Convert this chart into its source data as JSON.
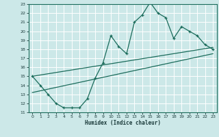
{
  "xlabel": "Humidex (Indice chaleur)",
  "bg_color": "#cce8e8",
  "grid_color": "#aacccc",
  "line_color": "#1a6b5a",
  "xlim": [
    -0.5,
    23.5
  ],
  "ylim": [
    11,
    23
  ],
  "xticks": [
    0,
    1,
    2,
    3,
    4,
    5,
    6,
    7,
    8,
    9,
    10,
    11,
    12,
    13,
    14,
    15,
    16,
    17,
    18,
    19,
    20,
    21,
    22,
    23
  ],
  "yticks": [
    11,
    12,
    13,
    14,
    15,
    16,
    17,
    18,
    19,
    20,
    21,
    22,
    23
  ],
  "main_x": [
    0,
    1,
    2,
    3,
    4,
    5,
    6,
    7,
    8,
    9,
    10,
    11,
    12,
    13,
    14,
    15,
    16,
    17,
    18,
    19,
    20,
    21,
    22,
    23
  ],
  "main_y": [
    15,
    14,
    13,
    12,
    11.5,
    11.5,
    11.5,
    12.5,
    14.8,
    16.5,
    19.5,
    18.3,
    17.5,
    21,
    21.8,
    23.2,
    22,
    21.5,
    19.2,
    20.5,
    20,
    19.5,
    18.5,
    18
  ],
  "line1_x": [
    0,
    23
  ],
  "line1_y": [
    15.0,
    18.2
  ],
  "line2_x": [
    0,
    23
  ],
  "line2_y": [
    13.2,
    17.5
  ]
}
